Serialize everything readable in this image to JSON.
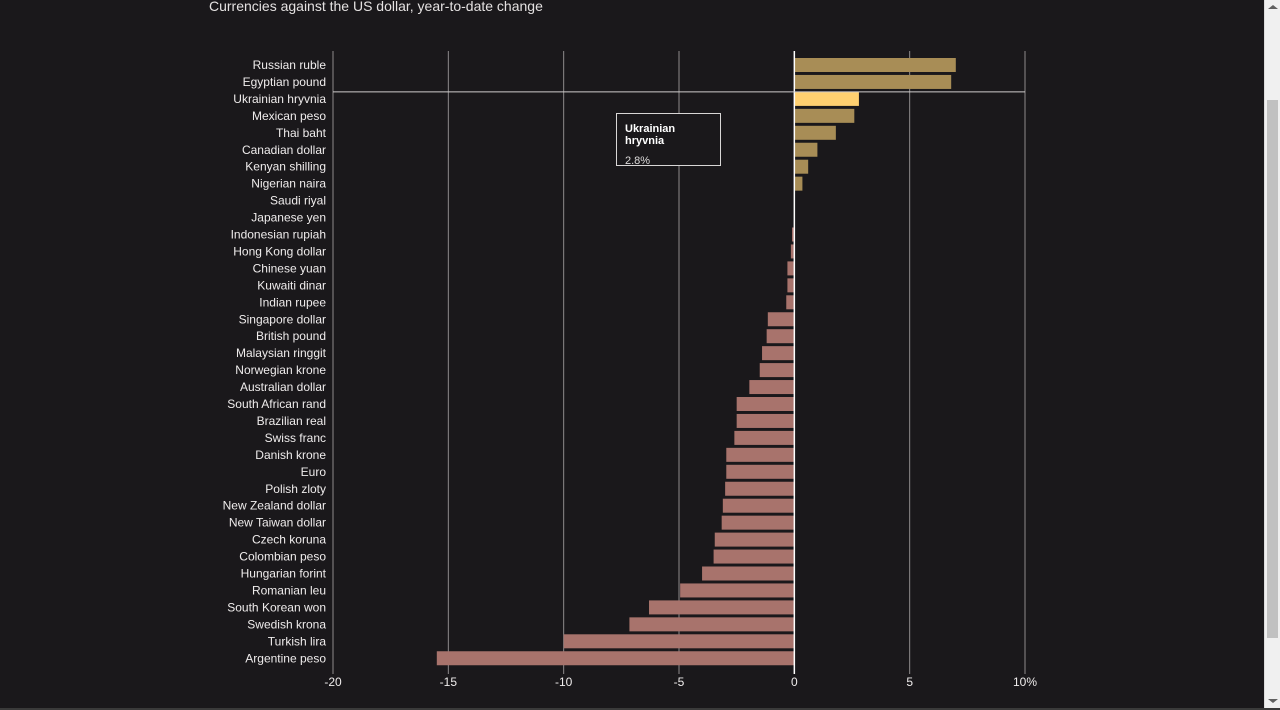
{
  "page": {
    "title": "Currencies against the US dollar, year-to-date change"
  },
  "tooltip": {
    "title": "Ukrainian hryvnia",
    "value": "2.8%"
  },
  "colors": {
    "positive": "#a88d56",
    "highlight": "#ffd070",
    "negative": "#a8736c",
    "background": "#1a181b",
    "grid": "#e0dcdc"
  },
  "chart_data": {
    "type": "bar",
    "orientation": "horizontal",
    "title": "Currencies against the US dollar, year-to-date change",
    "xlabel": "",
    "ylabel": "",
    "xlim": [
      -20,
      10
    ],
    "x_ticks": [
      -20,
      -15,
      -10,
      -5,
      0,
      5,
      10
    ],
    "x_tick_labels": [
      "-20",
      "-15",
      "-10",
      "-5",
      "0",
      "5",
      "10%"
    ],
    "grid": true,
    "highlighted": "Ukrainian hryvnia",
    "categories": [
      "Russian ruble",
      "Egyptian pound",
      "Ukrainian hryvnia",
      "Mexican peso",
      "Thai baht",
      "Canadian dollar",
      "Kenyan shilling",
      "Nigerian naira",
      "Saudi riyal",
      "Japanese yen",
      "Indonesian rupiah",
      "Hong Kong dollar",
      "Chinese yuan",
      "Kuwaiti dinar",
      "Indian rupee",
      "Singapore dollar",
      "British pound",
      "Malaysian ringgit",
      "Norwegian krone",
      "Australian dollar",
      "South African rand",
      "Brazilian real",
      "Swiss franc",
      "Danish krone",
      "Euro",
      "Polish zloty",
      "New Zealand dollar",
      "New Taiwan dollar",
      "Czech koruna",
      "Colombian peso",
      "Hungarian forint",
      "Romanian leu",
      "South Korean won",
      "Swedish krona",
      "Turkish lira",
      "Argentine peso"
    ],
    "values": [
      7.0,
      6.8,
      2.8,
      2.6,
      1.8,
      1.0,
      0.6,
      0.35,
      0.0,
      0.0,
      -0.1,
      -0.15,
      -0.3,
      -0.3,
      -0.35,
      -1.15,
      -1.2,
      -1.4,
      -1.5,
      -1.95,
      -2.5,
      -2.5,
      -2.6,
      -2.95,
      -2.95,
      -3.0,
      -3.1,
      -3.15,
      -3.45,
      -3.5,
      -4.0,
      -4.95,
      -6.3,
      -7.15,
      -10.0,
      -15.5
    ]
  }
}
